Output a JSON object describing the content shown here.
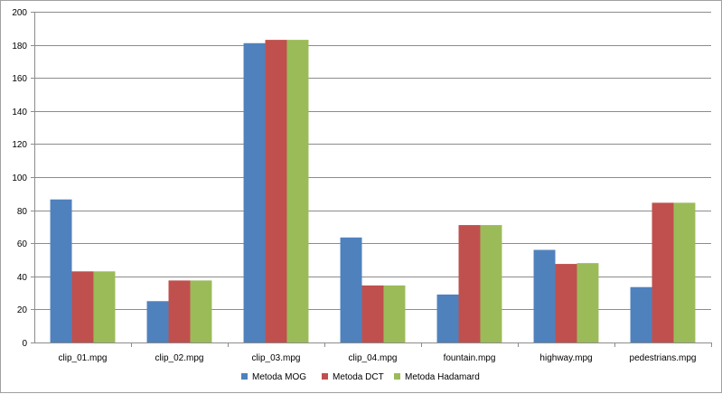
{
  "chart_data": {
    "type": "bar",
    "title": "",
    "xlabel": "",
    "ylabel": "",
    "categories": [
      "clip_01.mpg",
      "clip_02.mpg",
      "clip_03.mpg",
      "clip_04.mpg",
      "fountain.mpg",
      "highway.mpg",
      "pedestrians.mpg"
    ],
    "series": [
      {
        "name": "Metoda MOG",
        "color": "#4f81bd",
        "values": [
          86.5,
          25,
          181,
          63.5,
          29,
          56,
          33.5
        ]
      },
      {
        "name": "Metoda DCT",
        "color": "#c0504d",
        "values": [
          43,
          37.5,
          183,
          34.5,
          71,
          47.5,
          84.5
        ]
      },
      {
        "name": "Metoda Hadamard",
        "color": "#9bbb59",
        "values": [
          43,
          37.5,
          183,
          34.5,
          71,
          48,
          84.5
        ]
      }
    ],
    "ylim": [
      0,
      200
    ],
    "yticks": [
      0,
      20,
      40,
      60,
      80,
      100,
      120,
      140,
      160,
      180,
      200
    ],
    "grid": true,
    "legend_position": "bottom"
  }
}
